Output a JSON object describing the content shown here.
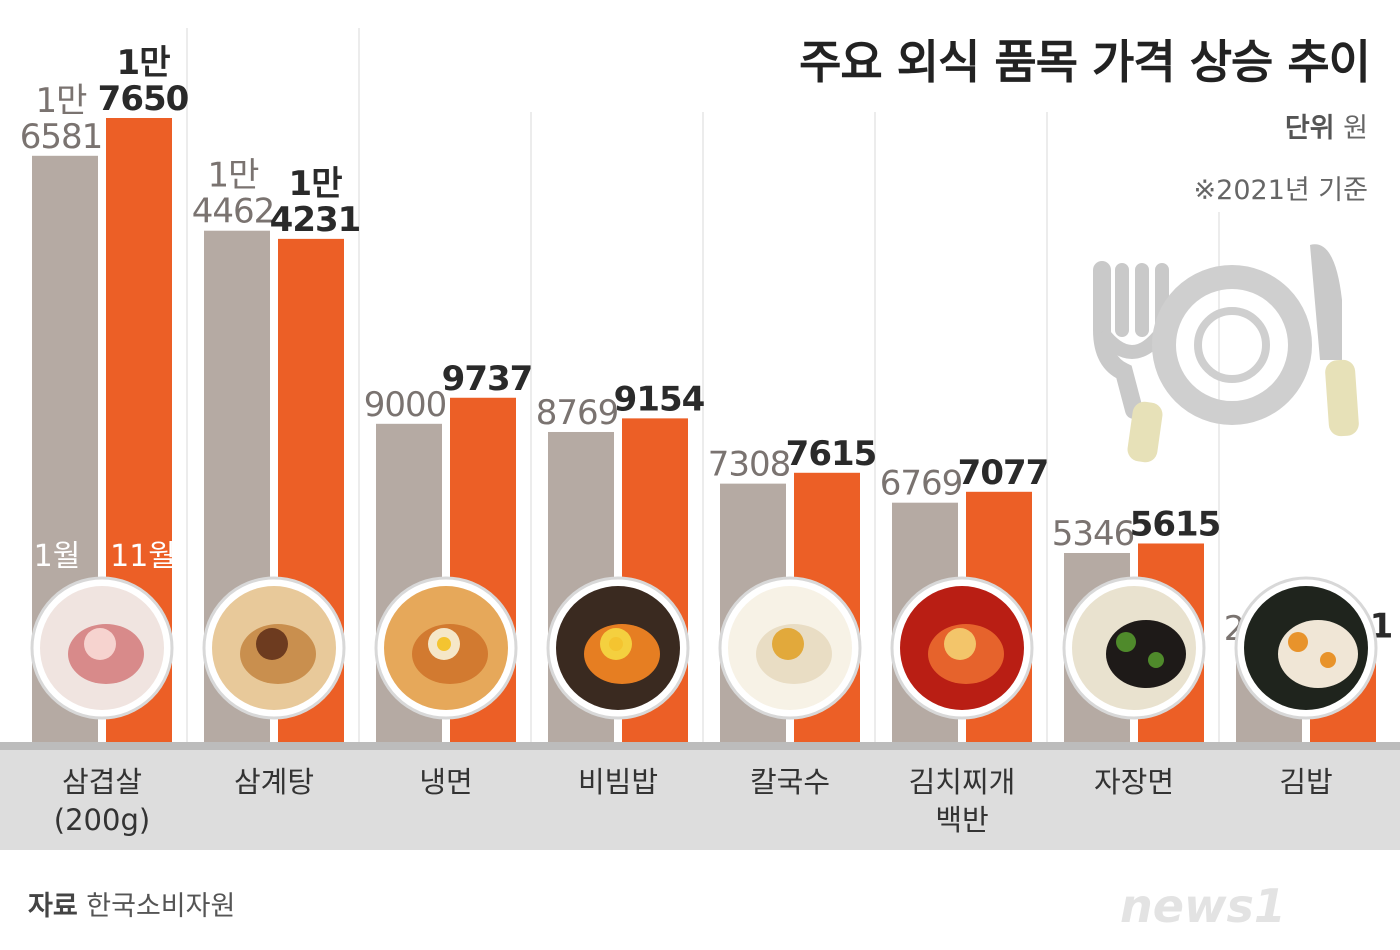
{
  "title": "주요 외식 품목 가격 상승 추이",
  "unit_label": "단위",
  "unit_value": "원",
  "note": "※2021년 기준",
  "source_label": "자료",
  "source_value": "한국소비자원",
  "logo": "news1",
  "colors": {
    "series_jan": "#b5aaa3",
    "series_nov": "#ec5f26",
    "label_jan": "#7a7370",
    "label_nov": "#2a2a2a",
    "band": "#dddddd",
    "strip": "#bcbcbc"
  },
  "chart_data": {
    "type": "bar",
    "categories": [
      "삼겹살 (200g)",
      "삼계탕",
      "냉면",
      "비빔밥",
      "칼국수",
      "김치찌개 백반",
      "자장면",
      "김밥"
    ],
    "category_lines": [
      [
        "삼겹살",
        "(200g)"
      ],
      [
        "삼계탕"
      ],
      [
        "냉면"
      ],
      [
        "비빔밥"
      ],
      [
        "칼국수"
      ],
      [
        "김치찌개",
        "백반"
      ],
      [
        "자장면"
      ],
      [
        "김밥"
      ]
    ],
    "series": [
      {
        "name": "1월",
        "values": [
          16581,
          14462,
          9000,
          8769,
          7308,
          6769,
          5346,
          2654
        ],
        "labels": [
          [
            "1만",
            "6581"
          ],
          [
            "1만",
            "4462"
          ],
          [
            "9000"
          ],
          [
            "8769"
          ],
          [
            "7308"
          ],
          [
            "6769"
          ],
          [
            "5346"
          ],
          [
            "2654"
          ]
        ]
      },
      {
        "name": "11월",
        "values": [
          17650,
          14231,
          9737,
          9154,
          7615,
          7077,
          5615,
          2731
        ],
        "labels": [
          [
            "1만",
            "7650"
          ],
          [
            "1만",
            "4231"
          ],
          [
            "9737"
          ],
          [
            "9154"
          ],
          [
            "7615"
          ],
          [
            "7077"
          ],
          [
            "5615"
          ],
          [
            "2731"
          ]
        ]
      }
    ],
    "icons": [
      "pork-belly-icon",
      "samgyetang-icon",
      "naengmyeon-icon",
      "bibimbap-icon",
      "kalguksu-icon",
      "kimchi-stew-icon",
      "jajangmyeon-icon",
      "gimbap-icon"
    ],
    "xlabel": "",
    "ylabel": "",
    "grid": false,
    "legend": "inside-first-bars"
  }
}
